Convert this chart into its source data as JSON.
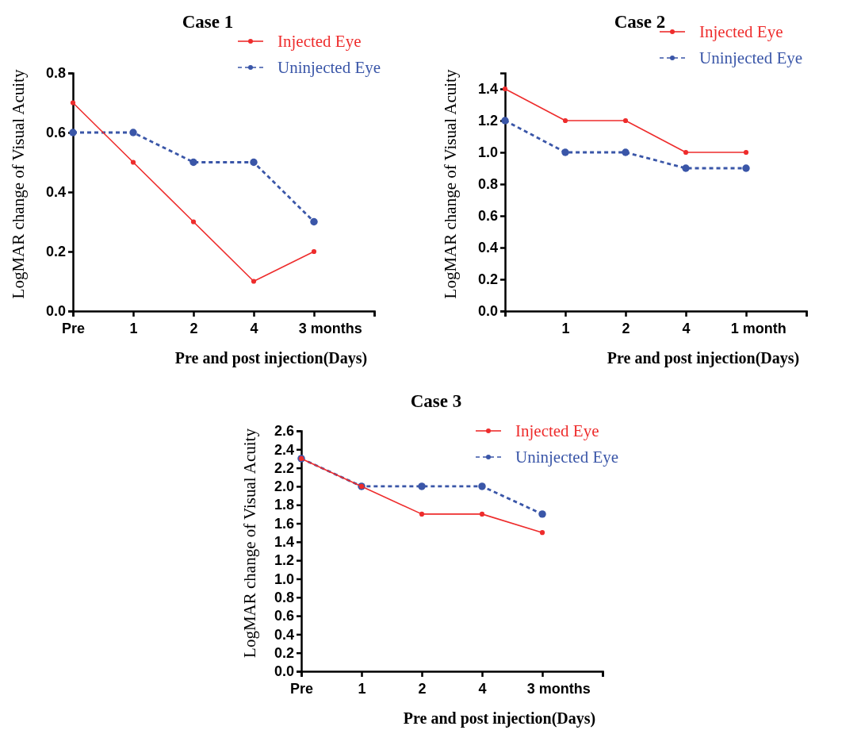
{
  "chart_data": [
    {
      "type": "line",
      "title": "Case 1",
      "xlabel": "Pre and post injection(Days)",
      "ylabel": "LogMAR change of Visual Acuity",
      "categories": [
        "Pre",
        "1",
        "2",
        "4",
        "3 months"
      ],
      "ylim": [
        0,
        0.8
      ],
      "yticks": [
        {
          "value": 0,
          "label": "0.0"
        },
        0.2,
        0.4,
        0.6,
        0.8
      ],
      "marker": "circle",
      "legend": "top right",
      "grid": false,
      "series": [
        {
          "name": "Injected Eye",
          "color": "#ee2c2c",
          "line_style": "solid",
          "values": [
            0.7,
            0.5,
            0.3,
            0.1,
            0.2
          ]
        },
        {
          "name": "Uninjected Eye",
          "color": "#3a56a8",
          "line_style": "dashed",
          "values": [
            0.6,
            0.6,
            0.5,
            0.5,
            0.3
          ]
        }
      ]
    },
    {
      "type": "line",
      "title": "Case 2",
      "xlabel": "Pre and post injection(Days)",
      "ylabel": "LogMAR change of Visual Acuity",
      "categories": [
        null,
        "1",
        "2",
        "4",
        "1 month"
      ],
      "ylim": [
        0,
        1.5
      ],
      "yticks": [
        {
          "value": 0,
          "label": "0.0"
        },
        0.2,
        0.4,
        0.6,
        0.8,
        {
          "value": 1,
          "label": "1.0"
        },
        1.2,
        1.4
      ],
      "marker": "circle",
      "legend": "top right",
      "grid": false,
      "series": [
        {
          "name": "Injected Eye",
          "color": "#ee2c2c",
          "line_style": "solid",
          "values": [
            1.4,
            1.2,
            1.2,
            1.0,
            1.0
          ]
        },
        {
          "name": "Uninjected Eye",
          "color": "#3a56a8",
          "line_style": "dashed",
          "values": [
            1.2,
            1.0,
            1.0,
            0.9,
            0.9
          ]
        }
      ]
    },
    {
      "type": "line",
      "title": "Case 3",
      "xlabel": "Pre and post injection(Days)",
      "ylabel": "LogMAR change of Visual Acuity",
      "categories": [
        "Pre",
        "1",
        "2",
        "4",
        "3 months"
      ],
      "ylim": [
        0,
        2.6
      ],
      "yticks": [
        {
          "value": 0,
          "label": "0.0"
        },
        0.2,
        0.4,
        0.6,
        0.8,
        {
          "value": 1,
          "label": "1.0"
        },
        1.2,
        1.4,
        1.6,
        1.8,
        {
          "value": 2,
          "label": "2.0"
        },
        2.2,
        2.4,
        2.6
      ],
      "marker": "circle",
      "legend": "top right",
      "grid": false,
      "series": [
        {
          "name": "Injected Eye",
          "color": "#ee2c2c",
          "line_style": "solid",
          "values": [
            2.3,
            2.0,
            1.7,
            1.7,
            1.5
          ]
        },
        {
          "name": "Uninjected Eye",
          "color": "#3a56a8",
          "line_style": "dashed",
          "values": [
            2.3,
            2.0,
            2.0,
            2.0,
            1.7
          ]
        }
      ]
    }
  ]
}
